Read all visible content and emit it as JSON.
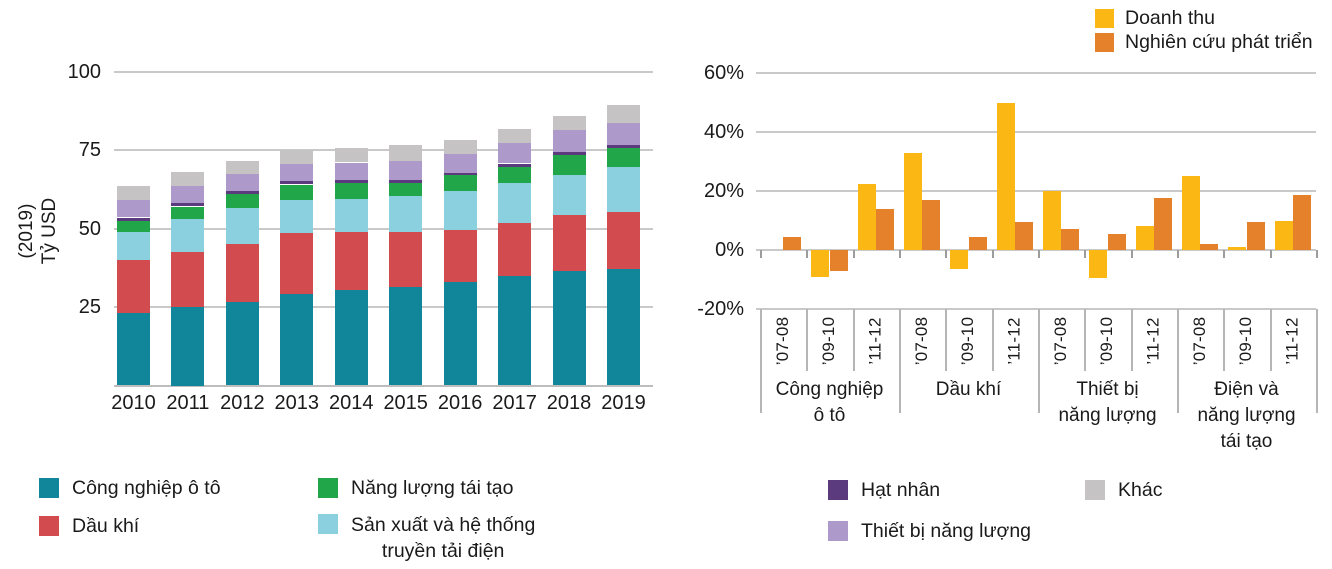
{
  "figure": {
    "description_left": "Stacked bar chart of investment by sector 2010-2019",
    "description_right": "Grouped bar chart of growth rates by sector and period"
  },
  "chart_data": [
    {
      "id": "left-stacked-bars",
      "type": "bar",
      "stacked": true,
      "ylabel_lines": [
        "(2019)",
        "Tỷ USD"
      ],
      "ylabel": "(2019) Tỷ USD",
      "ylim": [
        0,
        100
      ],
      "yticks": [
        100,
        75,
        50,
        25
      ],
      "ytick_labels": [
        "100",
        "75",
        "50",
        "25"
      ],
      "grid": true,
      "categories": [
        "2010",
        "2011",
        "2012",
        "2013",
        "2014",
        "2015",
        "2016",
        "2017",
        "2018",
        "2019"
      ],
      "series": [
        {
          "name": "Công nghiệp ô tô",
          "color": "#11869B",
          "values": [
            23,
            25,
            26.5,
            29,
            30.5,
            31.5,
            33,
            35,
            36.5,
            37
          ]
        },
        {
          "name": "Dầu khí",
          "color": "#D24B4E",
          "values": [
            17,
            17.5,
            18.5,
            19.5,
            18.5,
            17.5,
            16.5,
            16.7,
            17.8,
            18.3
          ]
        },
        {
          "name": "Sản xuất và hệ thống truyền tải điện",
          "color": "#8BD0DF",
          "values": [
            9,
            10.5,
            11.5,
            10.5,
            10.5,
            11.5,
            12.5,
            12.7,
            12.7,
            14.4
          ]
        },
        {
          "name": "Năng lượng tái tạo",
          "color": "#22A64A",
          "values": [
            3.5,
            4,
            4.5,
            5,
            5,
            4,
            5,
            5.3,
            6.4,
            6
          ]
        },
        {
          "name": "Hạt nhân",
          "color": "#5B3B7D",
          "values": [
            1,
            1,
            1,
            1,
            1,
            1,
            0.8,
            1,
            1,
            1
          ]
        },
        {
          "name": "Thiết bị năng lượng",
          "color": "#AE9ACA",
          "values": [
            5.5,
            5.5,
            5.5,
            5.5,
            5.5,
            6,
            5.8,
            6.6,
            6.9,
            7
          ]
        },
        {
          "name": "Khác",
          "color": "#C5C3C4",
          "values": [
            4.5,
            4.5,
            4,
            4.5,
            4.5,
            5,
            4.7,
            4.5,
            4.7,
            5.5
          ]
        }
      ]
    },
    {
      "id": "right-grouped-bars",
      "type": "bar",
      "stacked": false,
      "ylim": [
        -20,
        60
      ],
      "yticks": [
        60,
        40,
        20,
        0,
        -20
      ],
      "ytick_labels": [
        "60%",
        "40%",
        "20%",
        "0%",
        "-20%"
      ],
      "grid": true,
      "legend_position": "top-right",
      "period_labels": [
        "’07-08",
        "’09-10",
        "’11-12"
      ],
      "groups": [
        {
          "label_lines": [
            "Công nghiệp",
            "ô tô"
          ]
        },
        {
          "label_lines": [
            "Dầu khí"
          ]
        },
        {
          "label_lines": [
            "Thiết bị",
            "năng lượng"
          ]
        },
        {
          "label_lines": [
            "Điện và",
            "năng lượng",
            "tái tạo"
          ]
        }
      ],
      "series": [
        {
          "name": "Doanh thu",
          "color": "#FBB713",
          "values": [
            0,
            -9,
            22.5,
            33,
            -6.5,
            50,
            20,
            -9.5,
            8,
            25,
            1,
            10
          ]
        },
        {
          "name": "Nghiên cứu phát triển",
          "color": "#E5802B",
          "values": [
            4.5,
            -7,
            14,
            17,
            4.5,
            9.5,
            7,
            5.5,
            17.5,
            2,
            9.5,
            18.5
          ]
        }
      ]
    }
  ],
  "legends": {
    "left": [
      {
        "label": "Công nghiệp ô tô",
        "color": "#11869B"
      },
      {
        "label": "Dầu khí",
        "color": "#D24B4E"
      },
      {
        "label": "Năng lượng tái tạo",
        "color": "#22A64A"
      },
      {
        "label": "Sản xuất và hệ thống\ntruyền tải điện",
        "color": "#8BD0DF"
      }
    ],
    "right_bottom": [
      {
        "label": "Hạt nhân",
        "color": "#5B3B7D"
      },
      {
        "label": "Thiết bị năng lượng",
        "color": "#AE9ACA"
      },
      {
        "label": "Khác",
        "color": "#C5C3C4"
      }
    ],
    "right_top": [
      {
        "label": "Doanh thu",
        "color": "#FBB713"
      },
      {
        "label": "Nghiên cứu phát triển",
        "color": "#E5802B"
      }
    ]
  }
}
